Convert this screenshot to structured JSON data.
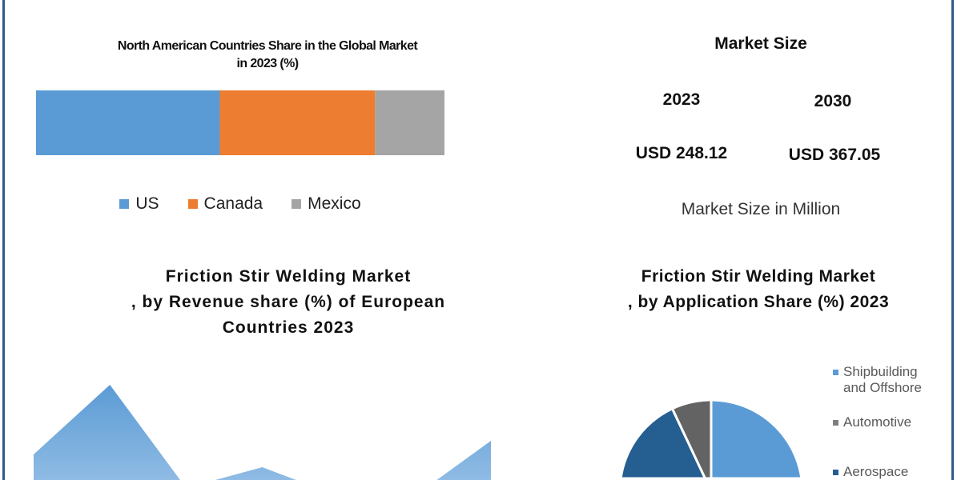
{
  "north_america": {
    "title_line1": "North American Countries Share in the Global Market",
    "title_line2": "in 2023 (%)"
  },
  "market_size": {
    "title": "Market Size",
    "years": [
      "2023",
      "2030"
    ],
    "values": [
      "USD 248.12",
      "USD 367.05"
    ],
    "unit_label": "Market Size in Million"
  },
  "europe": {
    "title_lines": [
      "Friction Stir Welding Market",
      ", by Revenue share (%) of European",
      "Countries 2023"
    ]
  },
  "application": {
    "title_lines": [
      "Friction Stir Welding Market",
      ", by Application  Share (%) 2023"
    ]
  },
  "colors": {
    "frame": "#2e5a8a",
    "us": "#5b9bd5",
    "canada": "#ed7d31",
    "mexico": "#a5a5a5",
    "area": "#6fa6d9",
    "shipbuilding": "#5b9bd5",
    "automotive": "#636363",
    "aerospace": "#255e91"
  },
  "chart_data": [
    {
      "type": "bar",
      "subtype": "100% stacked horizontal",
      "title": "North American Countries Share in the Global Market in 2023 (%)",
      "categories": [
        "2023"
      ],
      "series": [
        {
          "name": "US",
          "values": [
            45
          ]
        },
        {
          "name": "Canada",
          "values": [
            38
          ]
        },
        {
          "name": "Mexico",
          "values": [
            17
          ]
        }
      ],
      "legend": "bottom",
      "grid": false
    },
    {
      "type": "area",
      "title": "Friction Stir Welding Market , by Revenue share (%) of European Countries 2023",
      "values": [
        72,
        159,
        30,
        56,
        20,
        20,
        89
      ],
      "grid": false
    },
    {
      "type": "pie",
      "title": "Friction Stir Welding Market , by Application  Share (%) 2023",
      "slices": [
        {
          "name": "Shipbuilding and Offshore",
          "value": 50
        },
        {
          "name": "Aerospace",
          "value": 43
        },
        {
          "name": "Automotive",
          "value": 7
        }
      ],
      "legend": "right"
    }
  ]
}
